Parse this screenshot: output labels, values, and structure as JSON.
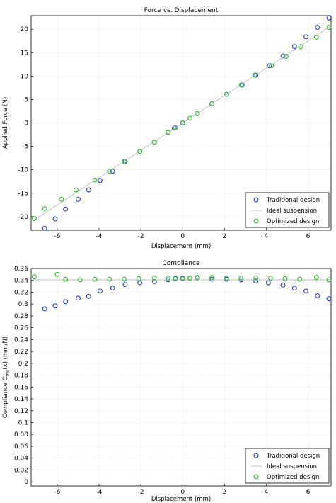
{
  "chart_data": [
    {
      "type": "scatter",
      "title": "Force vs. Displacement",
      "xlabel": "Displacement (mm)",
      "ylabel": "Applied Force (N)",
      "xlim": [
        -7.25,
        7.1
      ],
      "ylim": [
        -22.9,
        22.9
      ],
      "xticks": [
        -6,
        -4,
        -2,
        0,
        2,
        4,
        6
      ],
      "yticks": [
        -20,
        -15,
        -10,
        -5,
        0,
        5,
        10,
        15,
        20
      ],
      "grid": true,
      "legend_position": "bottom-right",
      "legend": [
        "Traditional design",
        "Ideal suspension",
        "Optimized design"
      ],
      "series": [
        {
          "name": "Traditional design",
          "kind": "markers",
          "color": "#1f3fd6",
          "points": [
            [
              -6.6,
              -22.5
            ],
            [
              -6.1,
              -20.5
            ],
            [
              -5.6,
              -18.4
            ],
            [
              -5.0,
              -16.3
            ],
            [
              -4.5,
              -14.3
            ],
            [
              -3.95,
              -12.3
            ],
            [
              -3.35,
              -10.3
            ],
            [
              -2.75,
              -8.2
            ],
            [
              -2.05,
              -6.1
            ],
            [
              -1.35,
              -4.1
            ],
            [
              -0.4,
              -1.1
            ],
            [
              0.0,
              0.0
            ],
            [
              0.7,
              2.0
            ],
            [
              1.4,
              4.1
            ],
            [
              2.1,
              6.1
            ],
            [
              2.85,
              8.1
            ],
            [
              3.5,
              10.2
            ],
            [
              4.15,
              12.2
            ],
            [
              4.8,
              14.3
            ],
            [
              5.35,
              16.3
            ],
            [
              5.9,
              18.4
            ],
            [
              6.45,
              20.4
            ],
            [
              7.0,
              22.4
            ]
          ]
        },
        {
          "name": "Ideal suspension",
          "kind": "line",
          "color": "#bfbfbf",
          "points": [
            [
              -7.25,
              -21.15
            ],
            [
              7.1,
              20.7
            ]
          ]
        },
        {
          "name": "Optimized design",
          "kind": "markers",
          "color": "#2dbf2d",
          "points": [
            [
              -7.1,
              -20.4
            ],
            [
              -6.6,
              -18.3
            ],
            [
              -5.8,
              -16.3
            ],
            [
              -5.1,
              -14.3
            ],
            [
              -4.2,
              -12.2
            ],
            [
              -3.5,
              -10.3
            ],
            [
              -2.8,
              -8.2
            ],
            [
              -2.05,
              -6.1
            ],
            [
              -1.35,
              -4.1
            ],
            [
              -0.7,
              -2.0
            ],
            [
              -0.35,
              -1.0
            ],
            [
              0.0,
              0.0
            ],
            [
              0.35,
              1.0
            ],
            [
              0.7,
              2.0
            ],
            [
              1.4,
              4.1
            ],
            [
              2.1,
              6.1
            ],
            [
              2.8,
              8.1
            ],
            [
              3.45,
              10.2
            ],
            [
              4.25,
              12.2
            ],
            [
              4.95,
              14.2
            ],
            [
              5.65,
              16.3
            ],
            [
              6.4,
              18.3
            ],
            [
              7.0,
              20.4
            ]
          ]
        }
      ]
    },
    {
      "type": "scatter",
      "title": "Compliance",
      "xlabel": "Displacement (mm)",
      "ylabel_main": "Compliance C",
      "ylabel_sub": "ms",
      "ylabel_tail": "(x) (mm/N)",
      "xlim": [
        -7.25,
        7.1
      ],
      "ylim": [
        -0.007,
        0.36
      ],
      "xticks": [
        -6,
        -4,
        -2,
        0,
        2,
        4,
        6
      ],
      "yticks": [
        0,
        0.02,
        0.04,
        0.06,
        0.08,
        0.1,
        0.12,
        0.14,
        0.16,
        0.18,
        0.2,
        0.22,
        0.24,
        0.26,
        0.28,
        0.3,
        0.32,
        0.34,
        0.36
      ],
      "grid": true,
      "legend_position": "bottom-right",
      "legend": [
        "Traditional design",
        "Ideal suspension",
        "Optimized design"
      ],
      "series": [
        {
          "name": "Traditional design",
          "kind": "markers",
          "color": "#1f3fd6",
          "points": [
            [
              -6.6,
              0.292
            ],
            [
              -6.1,
              0.297
            ],
            [
              -5.6,
              0.304
            ],
            [
              -5.0,
              0.31
            ],
            [
              -4.5,
              0.313
            ],
            [
              -3.95,
              0.322
            ],
            [
              -3.35,
              0.327
            ],
            [
              -2.75,
              0.333
            ],
            [
              -2.05,
              0.336
            ],
            [
              -1.35,
              0.338
            ],
            [
              -0.7,
              0.341
            ],
            [
              -0.35,
              0.343
            ],
            [
              0.0,
              0.343
            ],
            [
              0.35,
              0.344
            ],
            [
              0.7,
              0.344
            ],
            [
              1.4,
              0.342
            ],
            [
              2.1,
              0.342
            ],
            [
              2.8,
              0.341
            ],
            [
              3.5,
              0.339
            ],
            [
              4.1,
              0.336
            ],
            [
              4.8,
              0.332
            ],
            [
              5.35,
              0.327
            ],
            [
              5.9,
              0.322
            ],
            [
              6.45,
              0.314
            ],
            [
              7.0,
              0.309
            ]
          ]
        },
        {
          "name": "Ideal suspension",
          "kind": "line",
          "color": "#bfbfbf",
          "points": [
            [
              -7.25,
              0.341
            ],
            [
              7.1,
              0.341
            ]
          ]
        },
        {
          "name": "Optimized design",
          "kind": "markers",
          "color": "#2dbf2d",
          "points": [
            [
              -7.1,
              0.346
            ],
            [
              -6.0,
              0.35
            ],
            [
              -5.6,
              0.342
            ],
            [
              -4.9,
              0.341
            ],
            [
              -4.2,
              0.342
            ],
            [
              -3.5,
              0.342
            ],
            [
              -2.8,
              0.342
            ],
            [
              -2.1,
              0.343
            ],
            [
              -1.35,
              0.344
            ],
            [
              -0.7,
              0.344
            ],
            [
              -0.35,
              0.344
            ],
            [
              0.0,
              0.344
            ],
            [
              0.35,
              0.344
            ],
            [
              0.7,
              0.345
            ],
            [
              1.4,
              0.345
            ],
            [
              2.1,
              0.344
            ],
            [
              2.8,
              0.344
            ],
            [
              3.5,
              0.344
            ],
            [
              4.2,
              0.344
            ],
            [
              4.9,
              0.343
            ],
            [
              5.6,
              0.342
            ],
            [
              6.4,
              0.345
            ],
            [
              7.0,
              0.341
            ]
          ]
        }
      ]
    }
  ]
}
